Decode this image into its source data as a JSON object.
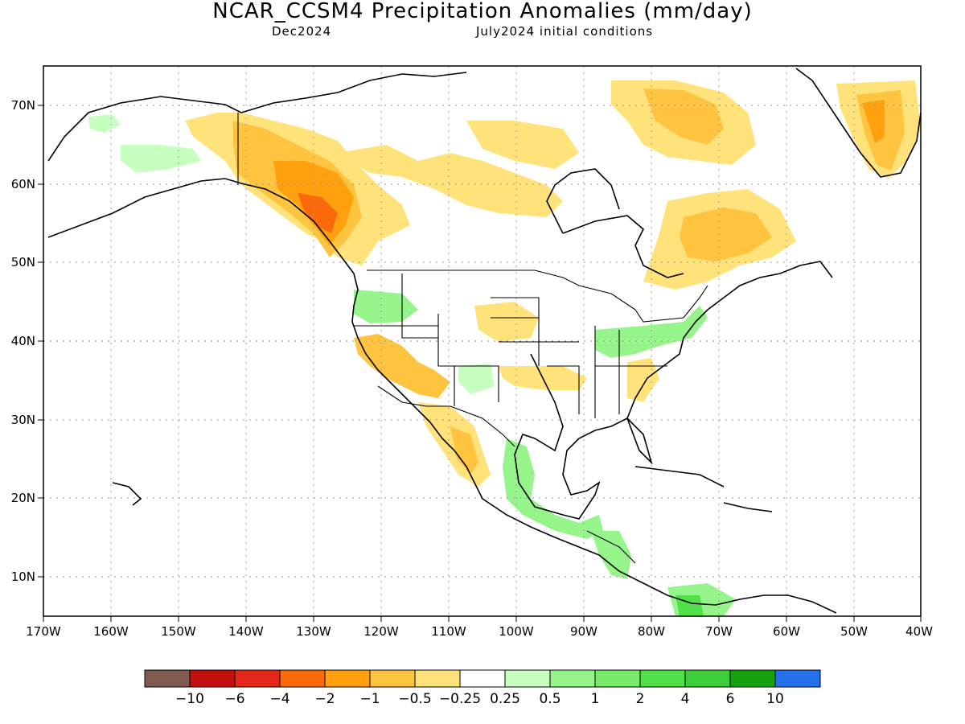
{
  "title": "NCAR_CCSM4 Precipitation Anomalies (mm/day)",
  "subtitle_left": "Dec2024",
  "subtitle_right": "July2024 initial conditions",
  "lon_ticks": [
    "170W",
    "160W",
    "150W",
    "140W",
    "130W",
    "120W",
    "110W",
    "100W",
    "90W",
    "80W",
    "70W",
    "60W",
    "50W",
    "40W"
  ],
  "lat_ticks": [
    "70N",
    "60N",
    "50N",
    "40N",
    "30N",
    "20N",
    "10N"
  ],
  "colorbar": {
    "colors": [
      "#7f5a4f",
      "#c40f0f",
      "#e5271a",
      "#fb6a0a",
      "#ffa10f",
      "#ffc43f",
      "#ffe27a",
      "#ffffff",
      "#c6ffc0",
      "#96f58a",
      "#78ec6a",
      "#52e04a",
      "#3ccf39",
      "#16a20f",
      "#2471eb"
    ],
    "labels": [
      "−10",
      "−6",
      "−4",
      "−2",
      "−1",
      "−0.5",
      "−0.25",
      "0.25",
      "0.5",
      "1",
      "2",
      "4",
      "6",
      "10"
    ]
  }
}
